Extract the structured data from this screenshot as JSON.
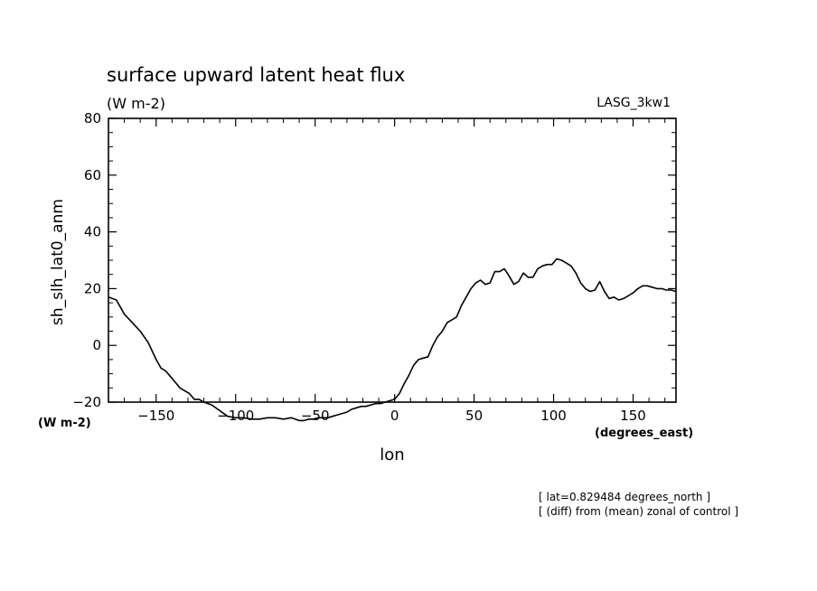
{
  "chart_data": {
    "type": "line",
    "title": "surface upward latent heat flux",
    "subtitle": "(W m-2)",
    "model_label": "LASG_3kw1",
    "xlabel": "lon",
    "xunits": "(degrees_east)",
    "ylabel": "sh_slh_lat0_anm",
    "yunits": "(W m-2)",
    "xlim": [
      -180,
      177
    ],
    "ylim": [
      -20,
      80
    ],
    "x_ticks": [
      -150,
      -100,
      -50,
      0,
      50,
      100,
      150
    ],
    "x_tick_labels": [
      "−150",
      "−100",
      "−50",
      "0",
      "50",
      "100",
      "150"
    ],
    "y_ticks": [
      -20,
      0,
      20,
      40,
      60,
      80
    ],
    "y_tick_labels": [
      "−20",
      "0",
      "20",
      "40",
      "60",
      "80"
    ],
    "annotations": [
      "[ lat=0.829484 degrees_north ]",
      "[ (diff) from (mean) zonal of control ]"
    ],
    "series": [
      {
        "name": "sh_slh_lat0_anm",
        "x": [
          -180,
          -175,
          -170,
          -165,
          -160,
          -155,
          -150,
          -147,
          -144,
          -141,
          -138,
          -135,
          -132,
          -129,
          -126,
          -123,
          -120,
          -115,
          -110,
          -105,
          -100,
          -95,
          -90,
          -85,
          -80,
          -75,
          -70,
          -65,
          -60,
          -57,
          -54,
          -51,
          -48,
          -45,
          -42,
          -39,
          -36,
          -33,
          -30,
          -27,
          -24,
          -21,
          -18,
          -15,
          -12,
          -9,
          -6,
          -3,
          0,
          3,
          6,
          9,
          12,
          15,
          18,
          21,
          24,
          27,
          30,
          33,
          36,
          39,
          42,
          45,
          48,
          51,
          54,
          57,
          60,
          63,
          66,
          69,
          72,
          75,
          78,
          81,
          84,
          87,
          90,
          93,
          96,
          99,
          102,
          105,
          108,
          111,
          114,
          117,
          120,
          123,
          126,
          129,
          132,
          135,
          138,
          141,
          144,
          147,
          150,
          153,
          156,
          159,
          162,
          165,
          168,
          171,
          174,
          177
        ],
        "values": [
          17,
          16,
          11,
          8,
          5,
          1,
          -5,
          -8,
          -9,
          -11,
          -13,
          -15,
          -16,
          -17,
          -19,
          -19,
          -20,
          -21,
          -23,
          -25,
          -25.5,
          -25.5,
          -26,
          -26,
          -25.5,
          -25.5,
          -26,
          -25.5,
          -26.5,
          -26.5,
          -26,
          -26,
          -25.5,
          -25.5,
          -25.5,
          -25,
          -24.5,
          -24,
          -23.5,
          -22.5,
          -22,
          -21.5,
          -21.5,
          -21,
          -20.5,
          -20.5,
          -20,
          -19.5,
          -19,
          -17,
          -13.5,
          -10.5,
          -7,
          -5,
          -4.5,
          -4,
          0,
          3,
          5,
          8,
          9,
          10,
          14,
          17,
          20,
          22,
          23,
          21.5,
          22,
          26,
          26,
          27,
          24.5,
          21.5,
          22.5,
          25.5,
          24,
          24,
          27,
          28,
          28.5,
          28.5,
          30.5,
          30,
          29,
          28,
          25.5,
          22,
          20,
          19,
          19.5,
          22.5,
          19,
          16.5,
          17,
          16,
          16.5,
          17.5,
          18.5,
          20,
          21,
          21,
          20.5,
          20,
          20,
          19.5,
          19.5,
          19
        ]
      }
    ]
  }
}
